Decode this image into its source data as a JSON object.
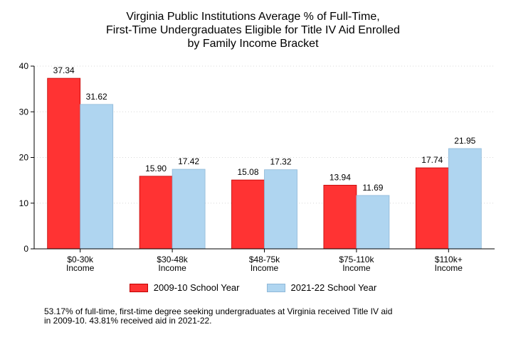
{
  "chart_data": {
    "type": "bar",
    "title_lines": [
      "Virginia Public Institutions Average % of Full-Time,",
      "First-Time Undergraduates Eligible for Title IV Aid Enrolled",
      "by Family Income Bracket"
    ],
    "categories": [
      [
        "$0-30k",
        "Income"
      ],
      [
        "$30-48k",
        "Income"
      ],
      [
        "$48-75k",
        "Income"
      ],
      [
        "$75-110k",
        "Income"
      ],
      [
        "$110k+",
        "Income"
      ]
    ],
    "series": [
      {
        "name": "2009-10 School Year",
        "values": [
          37.34,
          15.9,
          15.08,
          13.94,
          17.74
        ],
        "labels": [
          "37.34",
          "15.90",
          "15.08",
          "13.94",
          "17.74"
        ],
        "color": "#ff3333",
        "stroke": "#c00000"
      },
      {
        "name": "2021-22 School Year",
        "values": [
          31.62,
          17.42,
          17.32,
          11.69,
          21.95
        ],
        "labels": [
          "31.62",
          "17.42",
          "17.32",
          "11.69",
          "21.95"
        ],
        "color": "#afd5f0",
        "stroke": "#8fb8d8"
      }
    ],
    "yticks": [
      0,
      10,
      20,
      30,
      40
    ],
    "ylim": [
      0,
      40
    ],
    "grid": true,
    "legend_position": "bottom"
  },
  "note": {
    "lines": [
      "53.17% of full-time, first-time degree seeking undergraduates at Virginia received Title IV aid",
      "in 2009-10. 43.81% received aid in 2021-22."
    ]
  }
}
